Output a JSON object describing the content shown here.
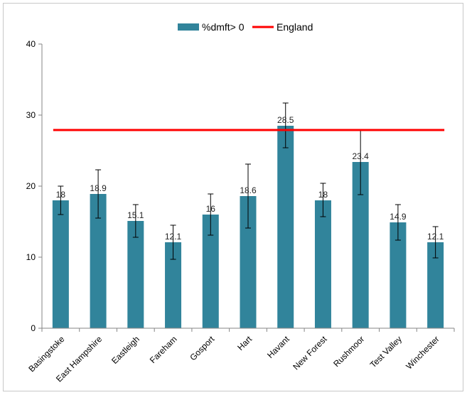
{
  "chart_data": {
    "type": "bar",
    "categories": [
      "Basingstoke",
      "East Hampshire",
      "Eastleigh",
      "Fareham",
      "Gosport",
      "Hart",
      "Havant",
      "New Forest",
      "Rushmoor",
      "Test Valley",
      "Winchester"
    ],
    "series": [
      {
        "name": "%dmft> 0",
        "values": [
          18,
          18.9,
          15.1,
          12.1,
          16,
          18.6,
          28.5,
          18,
          23.4,
          14.9,
          12.1
        ],
        "data_labels": [
          "18",
          "18.9",
          "15.1",
          "12.1",
          "16",
          "18.6",
          "28.5",
          "18",
          "23.4",
          "14.9",
          "12.1"
        ],
        "error_low": [
          16.0,
          15.5,
          12.8,
          9.7,
          13.1,
          14.1,
          25.4,
          15.7,
          18.8,
          12.4,
          9.9
        ],
        "error_high": [
          20.0,
          22.3,
          17.4,
          14.5,
          18.9,
          23.1,
          31.7,
          20.4,
          28.0,
          17.4,
          14.3
        ],
        "color": "#31849b"
      },
      {
        "name": "England",
        "type": "line",
        "value": 27.9,
        "color": "#ff0000"
      }
    ],
    "title": "",
    "xlabel": "",
    "ylabel": "",
    "ylim": [
      0,
      40
    ],
    "yticks": [
      "0",
      "10",
      "20",
      "30",
      "40"
    ],
    "legend_position": "top-center",
    "grid": false
  }
}
